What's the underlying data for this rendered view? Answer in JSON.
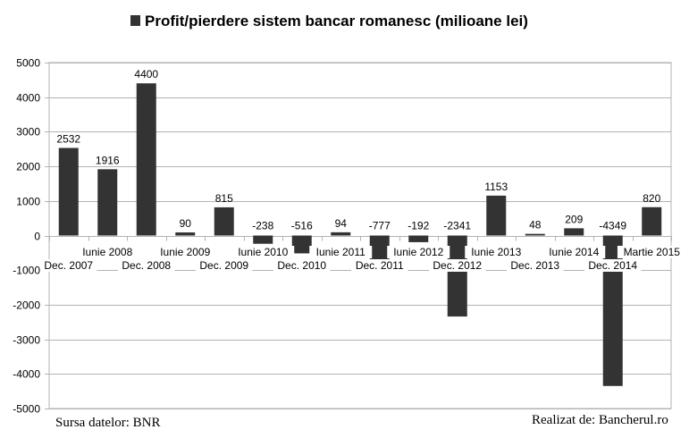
{
  "chart_data": {
    "type": "bar",
    "title": "Profit/pierdere sistem bancar romanesc (milioane lei)",
    "series": [
      {
        "name": "Profit/pierdere sistem bancar romanesc (milioane lei)",
        "color": "#333333",
        "values": [
          2532,
          1916,
          4400,
          90,
          815,
          -238,
          -516,
          94,
          -777,
          -192,
          -2341,
          1153,
          48,
          209,
          -4349,
          820
        ]
      }
    ],
    "categories": [
      "Dec. 2007",
      "Iunie 2008",
      "Dec. 2008",
      "Iunie 2009",
      "Dec. 2009",
      "Iunie 2010",
      "Dec. 2010",
      "Iunie 2011",
      "Dec. 2011",
      "Iunie 2012",
      "Dec. 2012",
      "Iunie 2013",
      "Dec. 2013",
      "Iunie 2014",
      "Dec. 2014",
      "Martie 2015"
    ],
    "data_labels": [
      "2532",
      "1916",
      "4400",
      "90",
      "815",
      "-238",
      "-516",
      "94",
      "-777",
      "-192",
      "-2341",
      "1153",
      "48",
      "209",
      "-4349",
      "820"
    ],
    "ylim": [
      -5000,
      5000
    ],
    "yticks": [
      5000,
      4000,
      3000,
      2000,
      1000,
      0,
      -1000,
      -2000,
      -3000,
      -4000,
      -5000
    ],
    "ytick_labels": [
      "5000",
      "4000",
      "3000",
      "2000",
      "1000",
      "0",
      "-1000",
      "-2000",
      "-3000",
      "-4000",
      "-5000"
    ],
    "xlabel": "",
    "ylabel": "",
    "grid": true,
    "legend_position": "top"
  },
  "footer": {
    "source": "Sursa datelor: BNR",
    "credit": "Realizat de: Bancherul.ro"
  }
}
